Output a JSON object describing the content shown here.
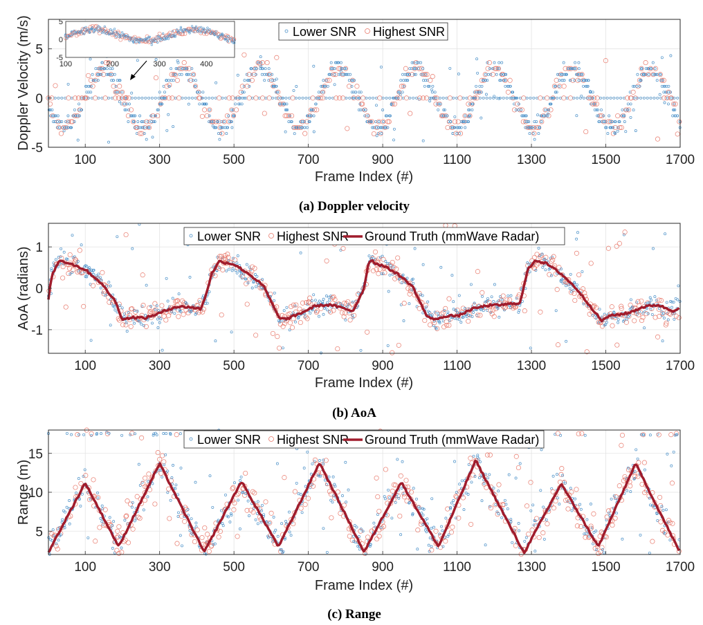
{
  "figure": {
    "colors": {
      "lower_snr": "#4a90c8",
      "highest_snr": "#e8786a",
      "ground_truth": "#a01c2c",
      "grid": "#e3e3e3",
      "axes": "#262626"
    }
  },
  "chart_data": [
    {
      "type": "scatter",
      "panel": "a",
      "caption": "(a) Doppler velocity",
      "xlabel": "Frame Index (#)",
      "ylabel": "Doppler Velocity (m/s)",
      "xlim": [
        1,
        1700
      ],
      "ylim": [
        -5,
        8
      ],
      "xticks": [
        100,
        300,
        500,
        700,
        900,
        1100,
        1300,
        1500,
        1700
      ],
      "yticks": [
        -5,
        0,
        5
      ],
      "grid": true,
      "legend": {
        "placement": "top-center",
        "entries": [
          "Lower SNR",
          "Highest SNR"
        ]
      },
      "series": [
        {
          "name": "Lower SNR",
          "marker": "small-circle",
          "pattern": "oscillating velocity, period ~210 frames, amplitude ~3 m/s, quantized bins"
        },
        {
          "name": "Highest SNR",
          "marker": "large-circle",
          "pattern": "oscillating velocity, period ~210 frames, amplitude ~3 m/s, quantized bins"
        }
      ],
      "oscillation": {
        "period": 210,
        "amplitude": 3.0,
        "peak_frames": [
          150,
          360,
          570,
          780,
          980,
          1190,
          1400,
          1610
        ],
        "trough_frames": [
          50,
          255,
          465,
          670,
          880,
          1085,
          1290,
          1500
        ]
      },
      "inset": {
        "xlim": [
          100,
          460
        ],
        "ylim": [
          -5,
          5
        ],
        "xticks": [
          100,
          200,
          300,
          400
        ],
        "yticks": [
          -5,
          0,
          5
        ]
      }
    },
    {
      "type": "scatter",
      "panel": "b",
      "caption": "(b) AoA",
      "xlabel": "Frame Index (#)",
      "ylabel": "AoA (radians)",
      "xlim": [
        1,
        1700
      ],
      "ylim": [
        -1.57,
        1.57
      ],
      "xticks": [
        100,
        300,
        500,
        700,
        900,
        1100,
        1300,
        1500,
        1700
      ],
      "yticks": [
        -1,
        0,
        1
      ],
      "grid": true,
      "legend": {
        "placement": "top-center",
        "entries": [
          "Lower SNR",
          "Highest SNR",
          "Ground Truth (mmWave Radar)"
        ]
      },
      "ground_truth": {
        "name": "Ground Truth (mmWave Radar)",
        "x": [
          1,
          10,
          30,
          60,
          100,
          140,
          180,
          200,
          230,
          260,
          300,
          340,
          380,
          410,
          420,
          440,
          460,
          500,
          540,
          580,
          620,
          640,
          680,
          720,
          760,
          820,
          850,
          860,
          870,
          880,
          900,
          940,
          980,
          1020,
          1050,
          1060,
          1080,
          1100,
          1140,
          1180,
          1220,
          1270,
          1290,
          1310,
          1340,
          1380,
          1420,
          1460,
          1490,
          1500,
          1520,
          1560,
          1600,
          1640,
          1680,
          1700
        ],
        "y": [
          -0.25,
          0.3,
          0.68,
          0.6,
          0.45,
          0.15,
          -0.3,
          -0.75,
          -0.7,
          -0.72,
          -0.6,
          -0.45,
          -0.45,
          -0.5,
          -0.3,
          0.35,
          0.65,
          0.58,
          0.35,
          0.05,
          -0.7,
          -0.75,
          -0.6,
          -0.42,
          -0.4,
          -0.55,
          0.0,
          0.55,
          0.7,
          0.6,
          0.55,
          0.35,
          0.05,
          -0.7,
          -0.75,
          -0.7,
          -0.65,
          -0.68,
          -0.5,
          -0.42,
          -0.4,
          -0.35,
          0.45,
          0.68,
          0.6,
          0.35,
          0.0,
          -0.45,
          -0.8,
          -0.7,
          -0.65,
          -0.6,
          -0.45,
          -0.4,
          -0.55,
          -0.45
        ]
      },
      "series": [
        {
          "name": "Lower SNR",
          "marker": "small-circle",
          "pattern": "scattered around ground truth with outliers up to ±1.57"
        },
        {
          "name": "Highest SNR",
          "marker": "large-circle",
          "pattern": "scattered around ground truth with outliers up to ±1.57"
        }
      ]
    },
    {
      "type": "scatter",
      "panel": "c",
      "caption": "(c) Range",
      "xlabel": "Frame Index (#)",
      "ylabel": "Range (m)",
      "xlim": [
        1,
        1700
      ],
      "ylim": [
        2,
        18
      ],
      "xticks": [
        100,
        300,
        500,
        700,
        900,
        1100,
        1300,
        1500,
        1700
      ],
      "yticks": [
        5,
        10,
        15
      ],
      "grid": true,
      "legend": {
        "placement": "top-center",
        "entries": [
          "Lower SNR",
          "Highest SNR",
          "Ground Truth (mmWave Radar)"
        ]
      },
      "ground_truth": {
        "name": "Ground Truth (mmWave Radar)",
        "x": [
          1,
          100,
          190,
          300,
          420,
          520,
          620,
          730,
          850,
          950,
          1050,
          1150,
          1280,
          1380,
          1480,
          1580,
          1700
        ],
        "y": [
          2.3,
          11.2,
          3.0,
          13.7,
          2.3,
          11.4,
          3.0,
          13.8,
          2.3,
          11.3,
          3.0,
          14.1,
          2.2,
          11.1,
          3.0,
          13.7,
          2.2
        ]
      },
      "series": [
        {
          "name": "Lower SNR",
          "marker": "small-circle",
          "pattern": "widely scattered 2–17.5 m, concentrated near ground truth"
        },
        {
          "name": "Highest SNR",
          "marker": "large-circle",
          "pattern": "widely scattered 2–17.5 m, concentrated near ground truth"
        }
      ]
    }
  ]
}
